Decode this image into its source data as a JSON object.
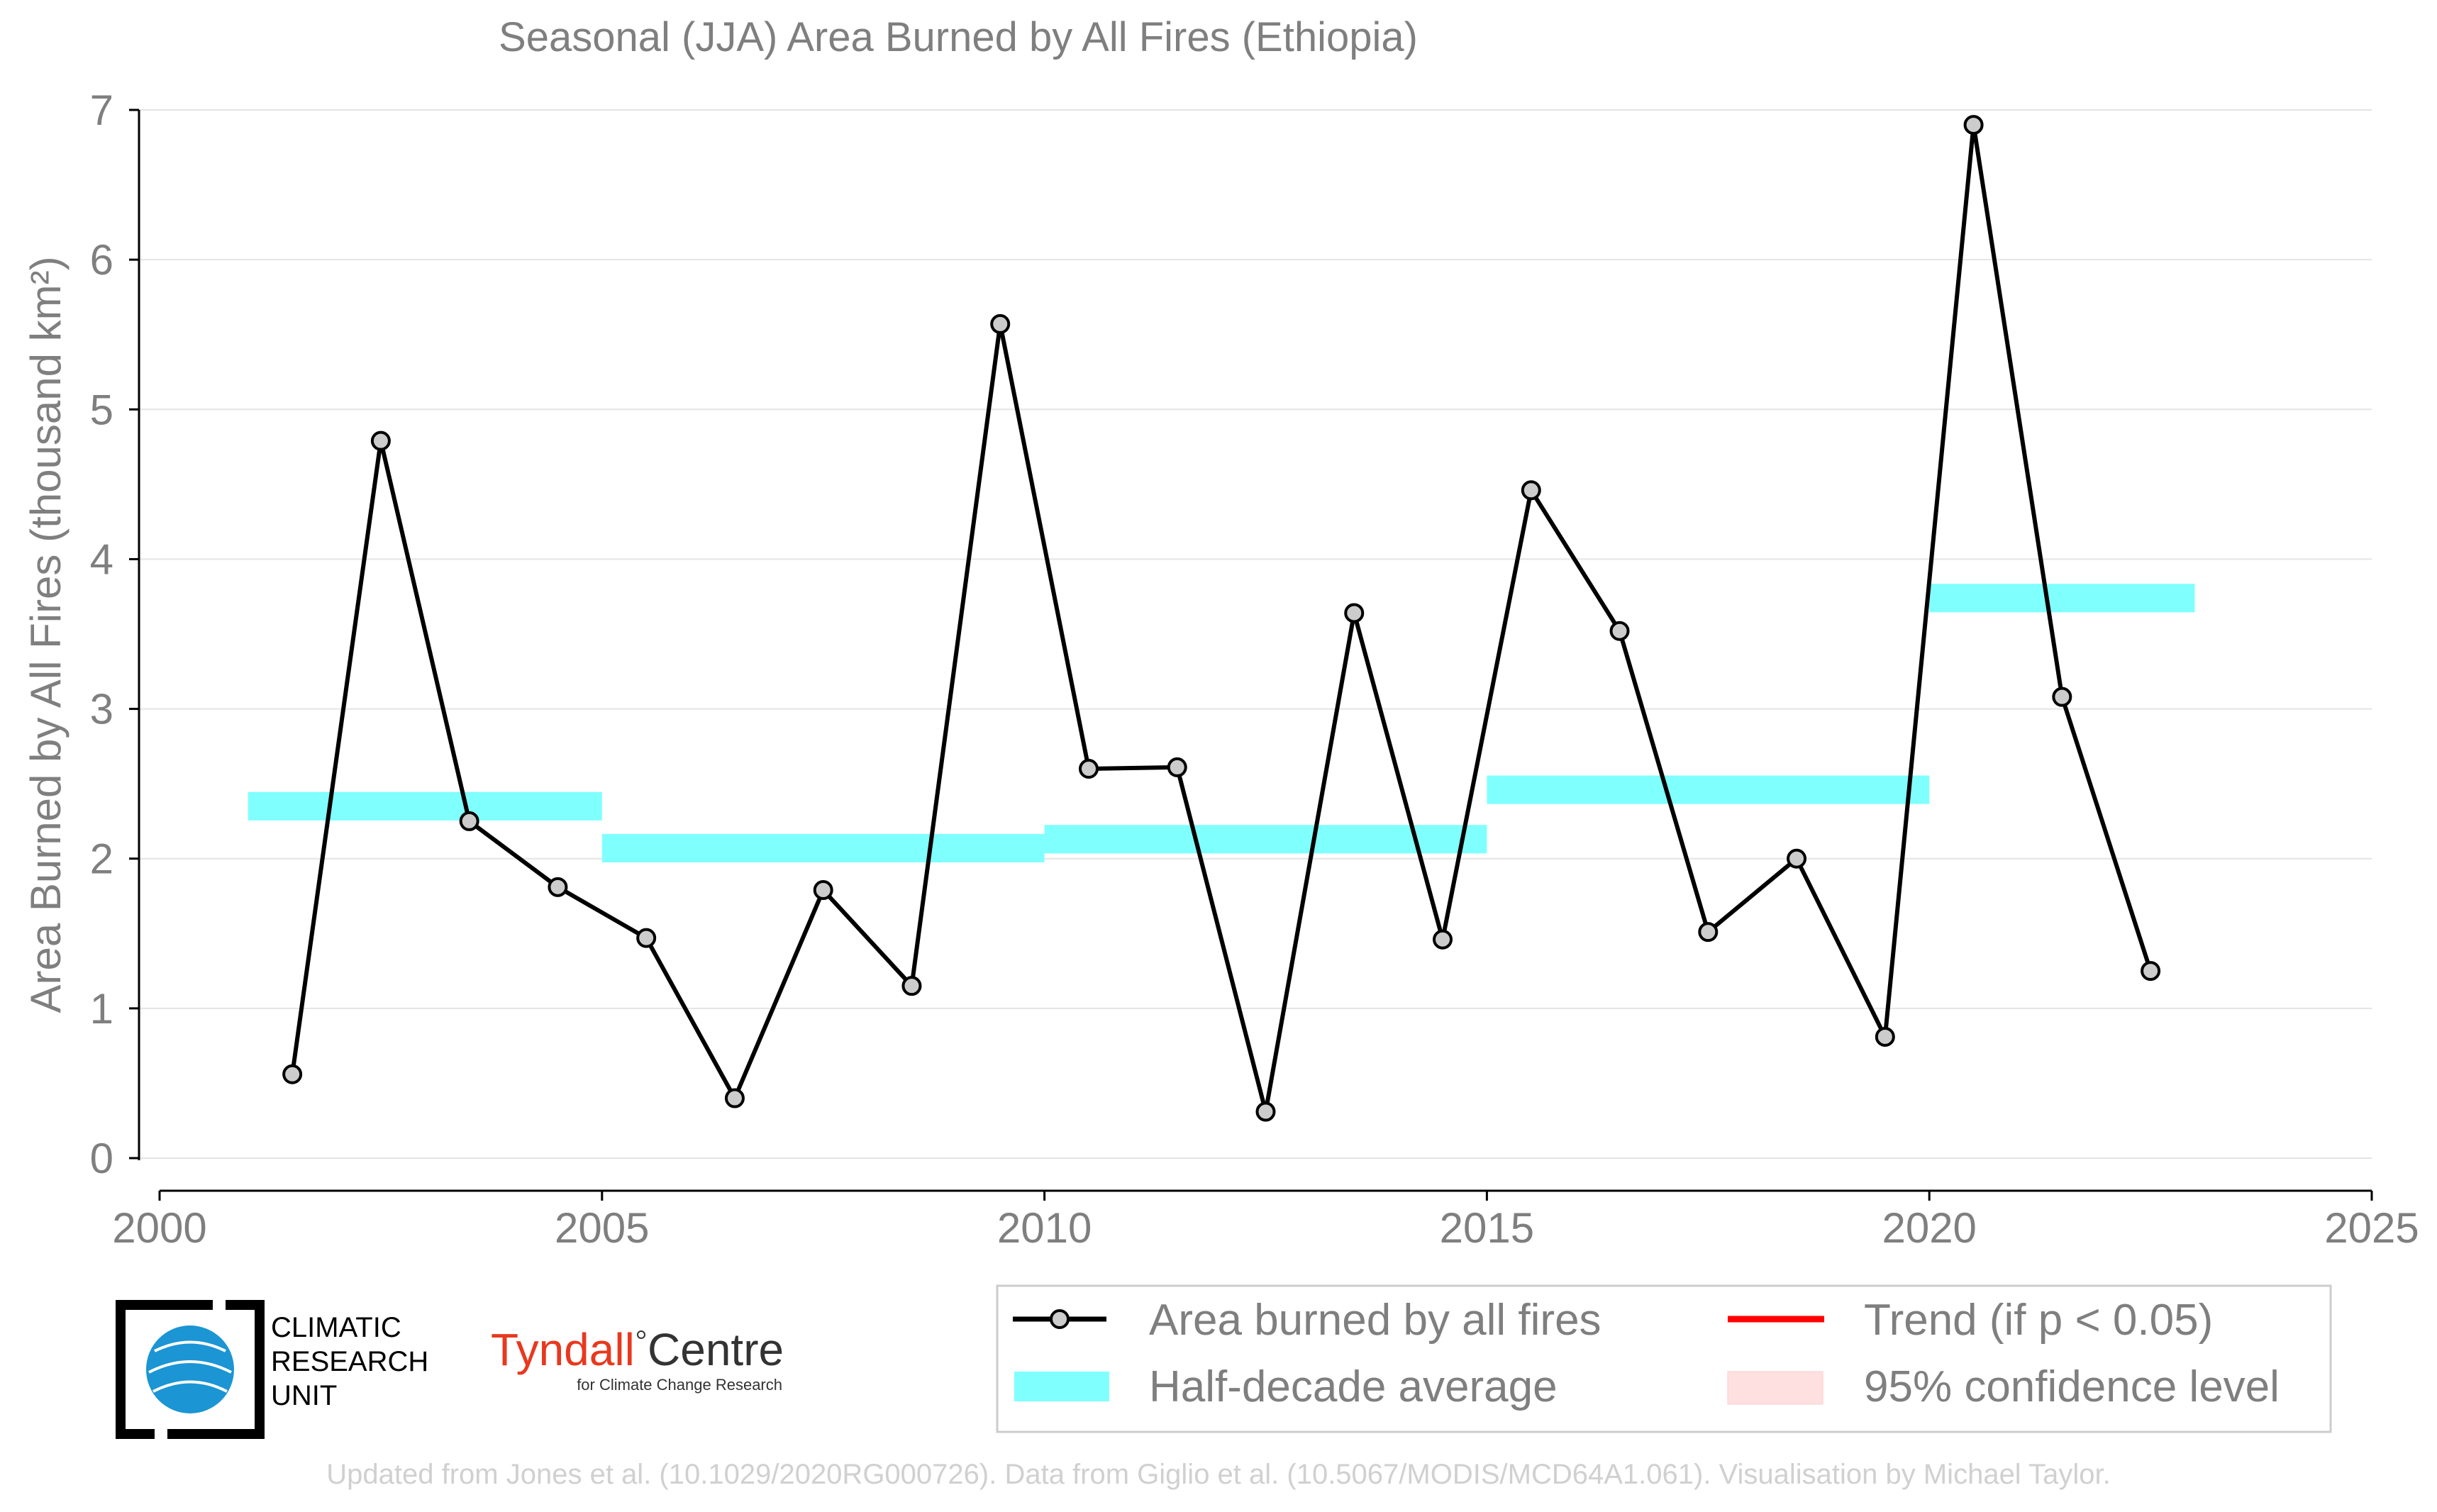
{
  "chart_data": {
    "type": "line",
    "title": "Seasonal (JJA) Area Burned by All Fires (Ethiopia)",
    "xlabel": "",
    "ylabel": "Area Burned by All Fires (thousand km²)",
    "xlim": [
      2000,
      2025
    ],
    "ylim": [
      0,
      7
    ],
    "xticks": [
      "2000",
      "2005",
      "2010",
      "2015",
      "2020",
      "2025"
    ],
    "yticks": [
      "0",
      "1",
      "2",
      "3",
      "4",
      "5",
      "6",
      "7"
    ],
    "grid": "horizontal",
    "legend_position": "bottom-right",
    "series": [
      {
        "name": "Area burned by all fires",
        "color": "#000000",
        "marker_fill": "#cccccc",
        "x": [
          2001.5,
          2002.5,
          2003.5,
          2004.5,
          2005.5,
          2006.5,
          2007.5,
          2008.5,
          2009.5,
          2010.5,
          2011.5,
          2012.5,
          2013.5,
          2014.5,
          2015.5,
          2016.5,
          2017.5,
          2018.5,
          2019.5,
          2020.5,
          2021.5,
          2022.5
        ],
        "values": [
          0.56,
          4.79,
          2.25,
          1.81,
          1.47,
          0.4,
          1.79,
          1.15,
          5.57,
          2.6,
          2.61,
          0.31,
          3.64,
          1.46,
          4.46,
          3.52,
          1.51,
          2.0,
          0.81,
          6.9,
          3.08,
          1.25
        ]
      },
      {
        "name": "Half-decade average",
        "color": "#80ffff",
        "segments": [
          {
            "x0": 2001.0,
            "x1": 2005.0,
            "value": 2.35
          },
          {
            "x0": 2005.0,
            "x1": 2010.0,
            "value": 2.07
          },
          {
            "x0": 2010.0,
            "x1": 2015.0,
            "value": 2.13
          },
          {
            "x0": 2015.0,
            "x1": 2020.0,
            "value": 2.46
          },
          {
            "x0": 2020.0,
            "x1": 2023.0,
            "value": 3.74
          }
        ]
      }
    ],
    "legend": [
      {
        "label": "Area burned by all fires",
        "symbol": "line-marker",
        "color": "#000000"
      },
      {
        "label": "Trend (if p < 0.05)",
        "symbol": "line",
        "color": "#ff0000"
      },
      {
        "label": "Half-decade average",
        "symbol": "patch",
        "color": "#80ffff"
      },
      {
        "label": "95% confidence level",
        "symbol": "patch",
        "color": "#ffe0e0"
      }
    ]
  },
  "logos": {
    "cru": [
      "CLIMATIC",
      "RESEARCH",
      "UNIT"
    ],
    "tyndall_name": "Tyndall",
    "tyndall_centre": "Centre",
    "tyndall_sub": "for Climate Change Research"
  },
  "footer": "Updated from Jones et al. (10.1029/2020RG000726). Data from Giglio et al. (10.5067/MODIS/MCD64A1.061). Visualisation by Michael Taylor."
}
